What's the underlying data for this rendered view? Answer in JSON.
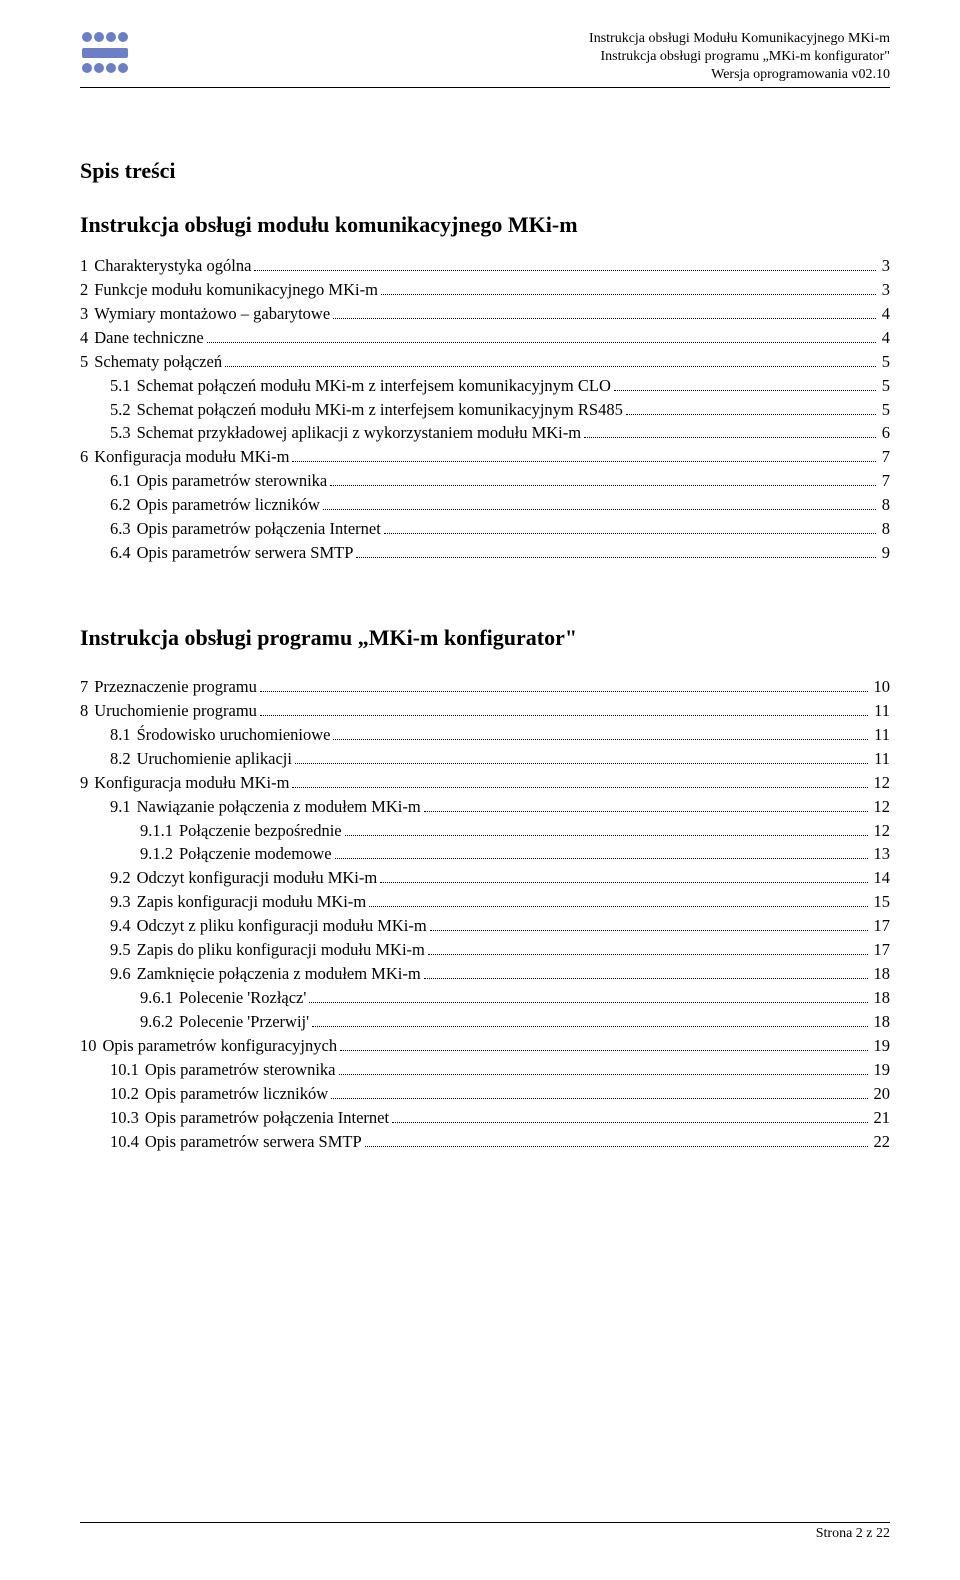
{
  "header": {
    "line1": "Instrukcja obsługi Modułu Komunikacyjnego MKi-m",
    "line2": "Instrukcja obsługi programu „MKi-m konfigurator\"",
    "line3": "Wersja oprogramowania v02.10"
  },
  "logo": {
    "fill": "#6a7fc8"
  },
  "title_spis": "Spis treści",
  "subtitle1": "Instrukcja obsługi modułu komunikacyjnego MKi-m",
  "subtitle2": "Instrukcja obsługi programu „MKi-m konfigurator\"",
  "toc1": [
    {
      "n": "1",
      "t": "Charakterystyka ogólna",
      "p": "3",
      "i": 1
    },
    {
      "n": "2",
      "t": "Funkcje modułu komunikacyjnego MKi-m",
      "p": "3",
      "i": 1
    },
    {
      "n": "3",
      "t": "Wymiary montażowo – gabarytowe",
      "p": "4",
      "i": 1
    },
    {
      "n": "4",
      "t": "Dane techniczne",
      "p": "4",
      "i": 1
    },
    {
      "n": "5",
      "t": "Schematy połączeń",
      "p": "5",
      "i": 1
    },
    {
      "n": "5.1",
      "t": "Schemat połączeń modułu MKi-m z interfejsem komunikacyjnym CLO",
      "p": "5",
      "i": 2
    },
    {
      "n": "5.2",
      "t": "Schemat połączeń modułu MKi-m z interfejsem komunikacyjnym RS485",
      "p": "5",
      "i": 2
    },
    {
      "n": "5.3",
      "t": "Schemat przykładowej aplikacji z wykorzystaniem modułu MKi-m",
      "p": "6",
      "i": 2
    },
    {
      "n": "6",
      "t": "Konfiguracja modułu MKi-m",
      "p": "7",
      "i": 1
    },
    {
      "n": "6.1",
      "t": "Opis parametrów sterownika",
      "p": "7",
      "i": 2
    },
    {
      "n": "6.2",
      "t": "Opis parametrów liczników",
      "p": "8",
      "i": 2
    },
    {
      "n": "6.3",
      "t": "Opis parametrów połączenia Internet",
      "p": "8",
      "i": 2
    },
    {
      "n": "6.4",
      "t": "Opis parametrów serwera SMTP",
      "p": "9",
      "i": 2
    }
  ],
  "toc2": [
    {
      "n": "7",
      "t": "Przeznaczenie programu",
      "p": "10",
      "i": 1
    },
    {
      "n": "8",
      "t": "Uruchomienie programu",
      "p": "11",
      "i": 1
    },
    {
      "n": "8.1",
      "t": "Środowisko uruchomieniowe",
      "p": "11",
      "i": 2
    },
    {
      "n": "8.2",
      "t": "Uruchomienie aplikacji",
      "p": "11",
      "i": 2
    },
    {
      "n": "9",
      "t": "Konfiguracja modułu MKi-m",
      "p": "12",
      "i": 1
    },
    {
      "n": "9.1",
      "t": "Nawiązanie połączenia z modułem MKi-m",
      "p": "12",
      "i": 2
    },
    {
      "n": "9.1.1",
      "t": "Połączenie bezpośrednie",
      "p": "12",
      "i": 3
    },
    {
      "n": "9.1.2",
      "t": "Połączenie modemowe",
      "p": "13",
      "i": 3
    },
    {
      "n": "9.2",
      "t": "Odczyt konfiguracji modułu MKi-m",
      "p": "14",
      "i": 2
    },
    {
      "n": "9.3",
      "t": "Zapis konfiguracji modułu MKi-m",
      "p": "15",
      "i": 2
    },
    {
      "n": "9.4",
      "t": "Odczyt z pliku konfiguracji modułu MKi-m",
      "p": "17",
      "i": 2
    },
    {
      "n": "9.5",
      "t": "Zapis do pliku konfiguracji modułu MKi-m",
      "p": "17",
      "i": 2
    },
    {
      "n": "9.6",
      "t": "Zamknięcie połączenia z modułem MKi-m",
      "p": "18",
      "i": 2
    },
    {
      "n": "9.6.1",
      "t": "Polecenie 'Rozłącz'",
      "p": "18",
      "i": 3
    },
    {
      "n": "9.6.2",
      "t": "Polecenie 'Przerwij'",
      "p": "18",
      "i": 3
    },
    {
      "n": "10",
      "t": "Opis parametrów konfiguracyjnych",
      "p": "19",
      "i": 1
    },
    {
      "n": "10.1",
      "t": "Opis parametrów sterownika",
      "p": "19",
      "i": 2
    },
    {
      "n": "10.2",
      "t": "Opis parametrów liczników",
      "p": "20",
      "i": 2
    },
    {
      "n": "10.3",
      "t": "Opis parametrów połączenia Internet",
      "p": "21",
      "i": 2
    },
    {
      "n": "10.4",
      "t": "Opis parametrów serwera SMTP",
      "p": "22",
      "i": 2
    }
  ],
  "footer": "Strona 2 z 22"
}
